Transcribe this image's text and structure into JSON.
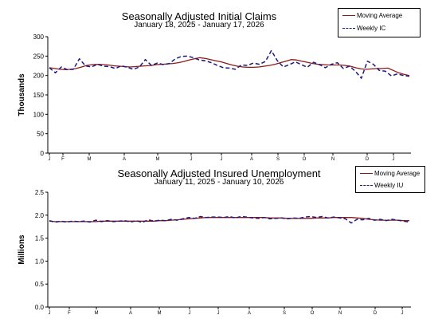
{
  "chart_data": [
    {
      "type": "line",
      "title": "Seasonally Adjusted Initial Claims",
      "subtitle": "January 18, 2025 - January 17, 2026",
      "ylabel": "Thousands",
      "ylim": [
        0,
        300
      ],
      "yticks": [
        "0",
        "50",
        "100",
        "150",
        "200",
        "250",
        "300"
      ],
      "month_labels": [
        "J",
        "F",
        "M",
        "A",
        "M",
        "J",
        "J",
        "A",
        "S",
        "O",
        "N",
        "D",
        "J"
      ],
      "legend": {
        "placement": "top-right"
      },
      "series": [
        {
          "name": "Moving Average",
          "color": "#8b1a1a",
          "style": "solid",
          "values": [
            220,
            218,
            216,
            215,
            216,
            218,
            222,
            226,
            228,
            229,
            228,
            227,
            225,
            224,
            223,
            222,
            223,
            224,
            225,
            226,
            228,
            229,
            230,
            231,
            233,
            236,
            240,
            243,
            246,
            244,
            241,
            238,
            235,
            231,
            227,
            224,
            222,
            221,
            221,
            222,
            224,
            226,
            229,
            233,
            237,
            241,
            240,
            237,
            234,
            231,
            229,
            228,
            227,
            227,
            227,
            226,
            224,
            220,
            217,
            216,
            217,
            218,
            218,
            219,
            213,
            207,
            203,
            200
          ]
        },
        {
          "name": "Weekly IC",
          "color": "#1a1a80",
          "style": "dashed",
          "values": [
            220,
            207,
            222,
            215,
            216,
            243,
            225,
            222,
            229,
            224,
            223,
            218,
            225,
            221,
            216,
            222,
            241,
            226,
            232,
            228,
            231,
            243,
            249,
            250,
            246,
            240,
            238,
            233,
            226,
            220,
            219,
            216,
            227,
            226,
            232,
            229,
            236,
            264,
            238,
            222,
            228,
            235,
            228,
            221,
            234,
            228,
            220,
            229,
            233,
            218,
            224,
            211,
            193,
            237,
            229,
            213,
            211,
            199,
            204,
            200,
            198
          ]
        }
      ]
    },
    {
      "type": "line",
      "title": "Seasonally Adjusted Insured Unemployment",
      "subtitle": "January 11, 2025 - January 10, 2026",
      "ylabel": "Millions",
      "ylim": [
        0,
        2.5
      ],
      "yticks": [
        "0.0",
        "0.5",
        "1.0",
        "1.5",
        "2.0",
        "2.5"
      ],
      "month_labels": [
        "J",
        "F",
        "M",
        "A",
        "M",
        "J",
        "J",
        "A",
        "S",
        "O",
        "N",
        "D",
        "J"
      ],
      "legend": {
        "placement": "top-right"
      },
      "series": [
        {
          "name": "Moving Average",
          "color": "#8b1a1a",
          "style": "solid",
          "values": [
            1.87,
            1.86,
            1.86,
            1.86,
            1.86,
            1.86,
            1.86,
            1.86,
            1.86,
            1.87,
            1.87,
            1.87,
            1.87,
            1.87,
            1.87,
            1.87,
            1.87,
            1.87,
            1.87,
            1.88,
            1.88,
            1.89,
            1.9,
            1.91,
            1.92,
            1.93,
            1.94,
            1.95,
            1.95,
            1.95,
            1.95,
            1.95,
            1.95,
            1.95,
            1.95,
            1.95,
            1.95,
            1.95,
            1.94,
            1.94,
            1.94,
            1.93,
            1.93,
            1.93,
            1.93,
            1.93,
            1.94,
            1.94,
            1.94,
            1.95,
            1.95,
            1.95,
            1.95,
            1.94,
            1.93,
            1.91,
            1.9,
            1.89,
            1.89,
            1.89,
            1.89,
            1.88,
            1.88
          ]
        },
        {
          "name": "Weekly IU",
          "color": "#1a1a80",
          "style": "dashed",
          "values": [
            1.88,
            1.85,
            1.87,
            1.85,
            1.87,
            1.86,
            1.87,
            1.85,
            1.89,
            1.86,
            1.88,
            1.86,
            1.87,
            1.88,
            1.85,
            1.88,
            1.84,
            1.9,
            1.87,
            1.89,
            1.88,
            1.91,
            1.89,
            1.92,
            1.95,
            1.93,
            1.97,
            1.95,
            1.96,
            1.96,
            1.95,
            1.97,
            1.94,
            1.97,
            1.96,
            1.94,
            1.93,
            1.95,
            1.92,
            1.93,
            1.94,
            1.92,
            1.94,
            1.93,
            1.96,
            1.97,
            1.95,
            1.97,
            1.94,
            1.96,
            1.94,
            1.92,
            1.83,
            1.91,
            1.9,
            1.93,
            1.89,
            1.91,
            1.88,
            1.91,
            1.89,
            1.87,
            1.85
          ]
        }
      ]
    }
  ]
}
